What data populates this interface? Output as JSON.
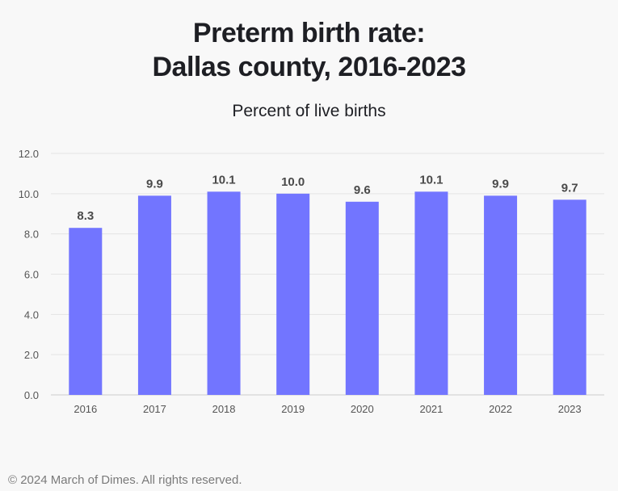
{
  "page": {
    "title_line1": "Preterm birth rate:",
    "title_line2": "Dallas county, 2016-2023",
    "subtitle": "Percent of live births",
    "footer": "© 2024 March of Dimes. All rights reserved."
  },
  "chart_data": {
    "type": "bar",
    "title": "Preterm birth rate: Dallas county, 2016-2023",
    "subtitle": "Percent of live births",
    "categories": [
      "2016",
      "2017",
      "2018",
      "2019",
      "2020",
      "2021",
      "2022",
      "2023"
    ],
    "values": [
      8.3,
      9.9,
      10.1,
      10.0,
      9.6,
      10.1,
      9.9,
      9.7
    ],
    "value_labels": [
      "8.3",
      "9.9",
      "10.1",
      "10.0",
      "9.6",
      "10.1",
      "9.9",
      "9.7"
    ],
    "yticks": [
      "0.0",
      "2.0",
      "4.0",
      "6.0",
      "8.0",
      "10.0",
      "12.0"
    ],
    "ylim": [
      0,
      12
    ],
    "grid": true,
    "bar_color": "#7275ff"
  }
}
